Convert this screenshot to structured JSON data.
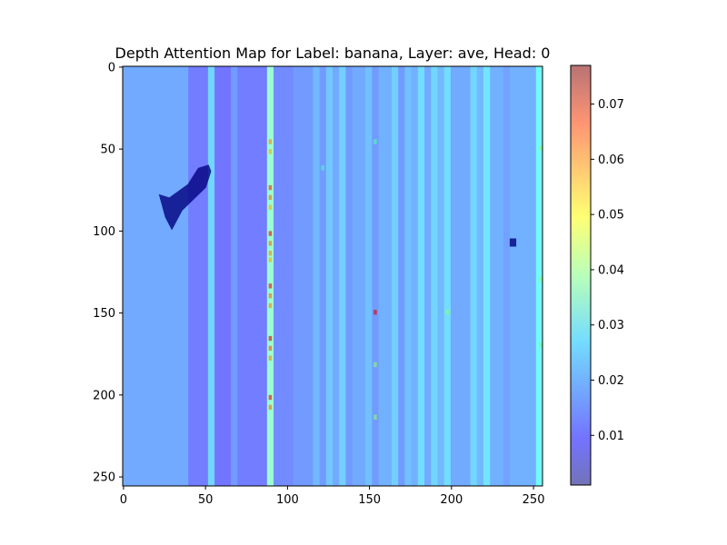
{
  "chart_data": {
    "type": "heatmap",
    "title": "Depth Attention Map for Label: banana, Layer: ave, Head: 0",
    "xlabel": "",
    "ylabel": "",
    "x_range": [
      0,
      255
    ],
    "y_range": [
      0,
      255
    ],
    "y_inverted": true,
    "grid": false,
    "colormap": "jet (semi-transparent overlay)",
    "x_ticks": [
      0,
      50,
      100,
      150,
      200,
      250
    ],
    "y_ticks": [
      0,
      50,
      100,
      150,
      200,
      250
    ],
    "x_tick_labels": [
      "0",
      "50",
      "100",
      "150",
      "200",
      "250"
    ],
    "y_tick_labels": [
      "0",
      "50",
      "100",
      "150",
      "200",
      "250"
    ],
    "colorbar": {
      "range": [
        0.001,
        0.077
      ],
      "ticks": [
        0.01,
        0.02,
        0.03,
        0.04,
        0.05,
        0.06,
        0.07
      ],
      "tick_labels": [
        "0.01",
        "0.02",
        "0.03",
        "0.04",
        "0.05",
        "0.06",
        "0.07"
      ]
    },
    "column_profile": [
      {
        "x": [
          0,
          40
        ],
        "value": 0.018
      },
      {
        "x": [
          40,
          52
        ],
        "value": 0.012
      },
      {
        "x": [
          52,
          56
        ],
        "value": 0.024
      },
      {
        "x": [
          56,
          66
        ],
        "value": 0.011
      },
      {
        "x": [
          66,
          70
        ],
        "value": 0.016
      },
      {
        "x": [
          70,
          88
        ],
        "value": 0.012
      },
      {
        "x": [
          88,
          92
        ],
        "value": 0.035
      },
      {
        "x": [
          92,
          104
        ],
        "value": 0.014
      },
      {
        "x": [
          104,
          116
        ],
        "value": 0.016
      },
      {
        "x": [
          116,
          120
        ],
        "value": 0.02
      },
      {
        "x": [
          120,
          124
        ],
        "value": 0.016
      },
      {
        "x": [
          124,
          128
        ],
        "value": 0.022
      },
      {
        "x": [
          128,
          132
        ],
        "value": 0.018
      },
      {
        "x": [
          132,
          136
        ],
        "value": 0.023
      },
      {
        "x": [
          136,
          140
        ],
        "value": 0.016
      },
      {
        "x": [
          140,
          148
        ],
        "value": 0.018
      },
      {
        "x": [
          148,
          152
        ],
        "value": 0.021
      },
      {
        "x": [
          152,
          156
        ],
        "value": 0.016
      },
      {
        "x": [
          156,
          164
        ],
        "value": 0.019
      },
      {
        "x": [
          164,
          168
        ],
        "value": 0.023
      },
      {
        "x": [
          168,
          172
        ],
        "value": 0.016
      },
      {
        "x": [
          172,
          176
        ],
        "value": 0.021
      },
      {
        "x": [
          176,
          180
        ],
        "value": 0.019
      },
      {
        "x": [
          180,
          184
        ],
        "value": 0.025
      },
      {
        "x": [
          184,
          188
        ],
        "value": 0.018
      },
      {
        "x": [
          188,
          192
        ],
        "value": 0.024
      },
      {
        "x": [
          192,
          196
        ],
        "value": 0.02
      },
      {
        "x": [
          196,
          200
        ],
        "value": 0.025
      },
      {
        "x": [
          200,
          212
        ],
        "value": 0.018
      },
      {
        "x": [
          212,
          216
        ],
        "value": 0.024
      },
      {
        "x": [
          216,
          220
        ],
        "value": 0.02
      },
      {
        "x": [
          220,
          224
        ],
        "value": 0.026
      },
      {
        "x": [
          224,
          232
        ],
        "value": 0.019
      },
      {
        "x": [
          232,
          236
        ],
        "value": 0.017
      },
      {
        "x": [
          236,
          252
        ],
        "value": 0.019
      },
      {
        "x": [
          252,
          256
        ],
        "value": 0.029
      }
    ],
    "hotspots": [
      {
        "x": 90,
        "y": 46,
        "value": 0.058
      },
      {
        "x": 90,
        "y": 52,
        "value": 0.055
      },
      {
        "x": 90,
        "y": 74,
        "value": 0.065
      },
      {
        "x": 90,
        "y": 80,
        "value": 0.06
      },
      {
        "x": 90,
        "y": 86,
        "value": 0.055
      },
      {
        "x": 90,
        "y": 102,
        "value": 0.068
      },
      {
        "x": 90,
        "y": 108,
        "value": 0.06
      },
      {
        "x": 90,
        "y": 114,
        "value": 0.058
      },
      {
        "x": 90,
        "y": 118,
        "value": 0.055
      },
      {
        "x": 90,
        "y": 134,
        "value": 0.068
      },
      {
        "x": 90,
        "y": 140,
        "value": 0.06
      },
      {
        "x": 90,
        "y": 146,
        "value": 0.058
      },
      {
        "x": 90,
        "y": 166,
        "value": 0.07
      },
      {
        "x": 90,
        "y": 172,
        "value": 0.062
      },
      {
        "x": 90,
        "y": 178,
        "value": 0.058
      },
      {
        "x": 90,
        "y": 202,
        "value": 0.068
      },
      {
        "x": 90,
        "y": 208,
        "value": 0.06
      },
      {
        "x": 154,
        "y": 150,
        "value": 0.07
      },
      {
        "x": 154,
        "y": 182,
        "value": 0.04
      },
      {
        "x": 154,
        "y": 214,
        "value": 0.04
      },
      {
        "x": 198,
        "y": 150,
        "value": 0.04
      },
      {
        "x": 122,
        "y": 62,
        "value": 0.035
      },
      {
        "x": 154,
        "y": 46,
        "value": 0.035
      },
      {
        "x": 255,
        "y": 50,
        "value": 0.04
      },
      {
        "x": 255,
        "y": 130,
        "value": 0.04
      },
      {
        "x": 255,
        "y": 170,
        "value": 0.038
      }
    ],
    "dark_regions": [
      {
        "x": [
          22,
          54
        ],
        "y": [
          60,
          100
        ],
        "value": 0.001
      },
      {
        "x": [
          236,
          240
        ],
        "y": [
          105,
          110
        ],
        "value": 0.001
      }
    ]
  }
}
